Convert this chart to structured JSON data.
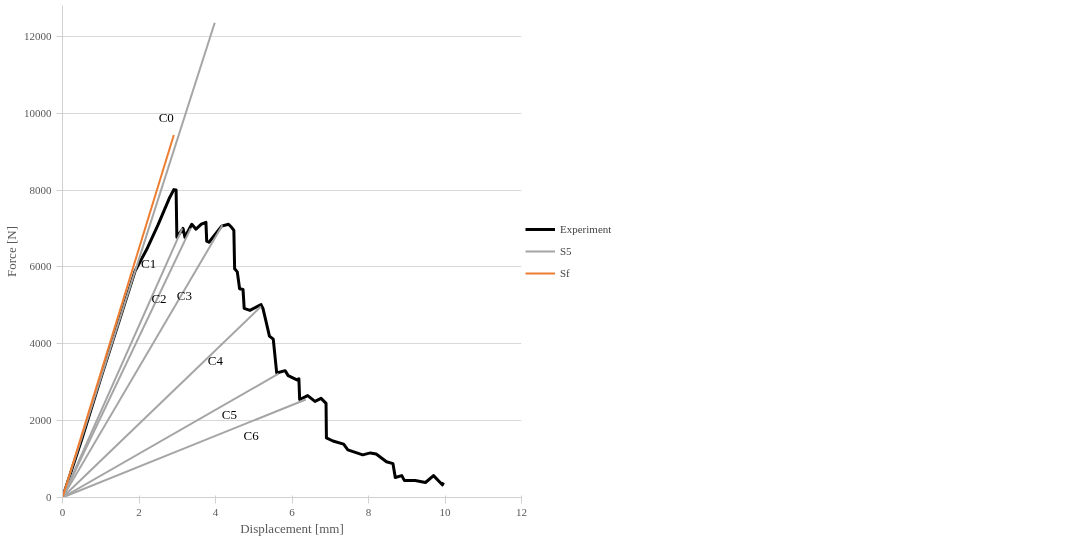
{
  "chart_data": {
    "type": "line",
    "xlabel": "Displacement [mm]",
    "ylabel": "Force [N]",
    "xlim": [
      0,
      12
    ],
    "ylim": [
      0,
      12800
    ],
    "xticks": [
      0,
      2,
      4,
      6,
      8,
      10,
      12
    ],
    "yticks": [
      0,
      2000,
      4000,
      6000,
      8000,
      10000,
      12000
    ],
    "grid": "y",
    "legend": "right",
    "line_style": "solid",
    "marker": "none",
    "series": [
      {
        "name": "Experiment",
        "color": "#000000",
        "x": [
          0,
          0.5,
          1.0,
          1.5,
          1.9,
          2.2,
          2.5,
          2.8,
          2.91,
          2.97,
          2.99,
          3.15,
          3.2,
          3.38,
          3.49,
          3.63,
          3.75,
          3.77,
          3.83,
          4.16,
          4.34,
          4.42,
          4.48,
          4.5,
          4.57,
          4.63,
          4.72,
          4.75,
          4.9,
          5.19,
          5.24,
          5.31,
          5.41,
          5.51,
          5.6,
          5.82,
          5.9,
          6.13,
          6.18,
          6.2,
          6.41,
          6.6,
          6.76,
          6.89,
          6.9,
          7.07,
          7.35,
          7.46,
          7.85,
          8.05,
          8.2,
          8.47,
          8.64,
          8.7,
          8.87,
          8.94,
          9.22,
          9.49,
          9.7,
          9.93,
          9.96
        ],
        "values": [
          0,
          1500,
          3100,
          4650,
          5900,
          6450,
          7100,
          7800,
          8010,
          8000,
          6770,
          7000,
          6770,
          7110,
          6980,
          7110,
          7160,
          6670,
          6640,
          7060,
          7110,
          7030,
          6950,
          5950,
          5870,
          5430,
          5410,
          4920,
          4870,
          5020,
          4920,
          4630,
          4200,
          4120,
          3240,
          3300,
          3170,
          3060,
          3090,
          2550,
          2650,
          2500,
          2580,
          2450,
          1550,
          1470,
          1390,
          1240,
          1110,
          1160,
          1130,
          930,
          880,
          520,
          570,
          440,
          440,
          390,
          570,
          330,
          390
        ]
      },
      {
        "name": "S5",
        "color": "#a5a5a5",
        "x": [
          0,
          3.98
        ],
        "values": [
          0,
          12350
        ]
      },
      {
        "color": "#a5a5a5",
        "x": [
          0,
          3.13
        ],
        "values": [
          0,
          7000
        ]
      },
      {
        "color": "#a5a5a5",
        "x": [
          0,
          3.35
        ],
        "values": [
          0,
          7000
        ]
      },
      {
        "color": "#a5a5a5",
        "x": [
          0,
          4.18
        ],
        "values": [
          0,
          7080
        ]
      },
      {
        "color": "#a5a5a5",
        "x": [
          0,
          5.19
        ],
        "values": [
          0,
          4970
        ]
      },
      {
        "color": "#a5a5a5",
        "x": [
          0,
          5.65
        ],
        "values": [
          0,
          3220
        ]
      },
      {
        "color": "#a5a5a5",
        "x": [
          0,
          6.36
        ],
        "values": [
          0,
          2550
        ]
      },
      {
        "name": "Sf",
        "color": "#ed7d31",
        "x": [
          0,
          2.91
        ],
        "values": [
          0,
          9430
        ]
      }
    ],
    "annotations": [
      "C0",
      "C1",
      "C2",
      "C3",
      "C4",
      "C5",
      "C6"
    ]
  }
}
